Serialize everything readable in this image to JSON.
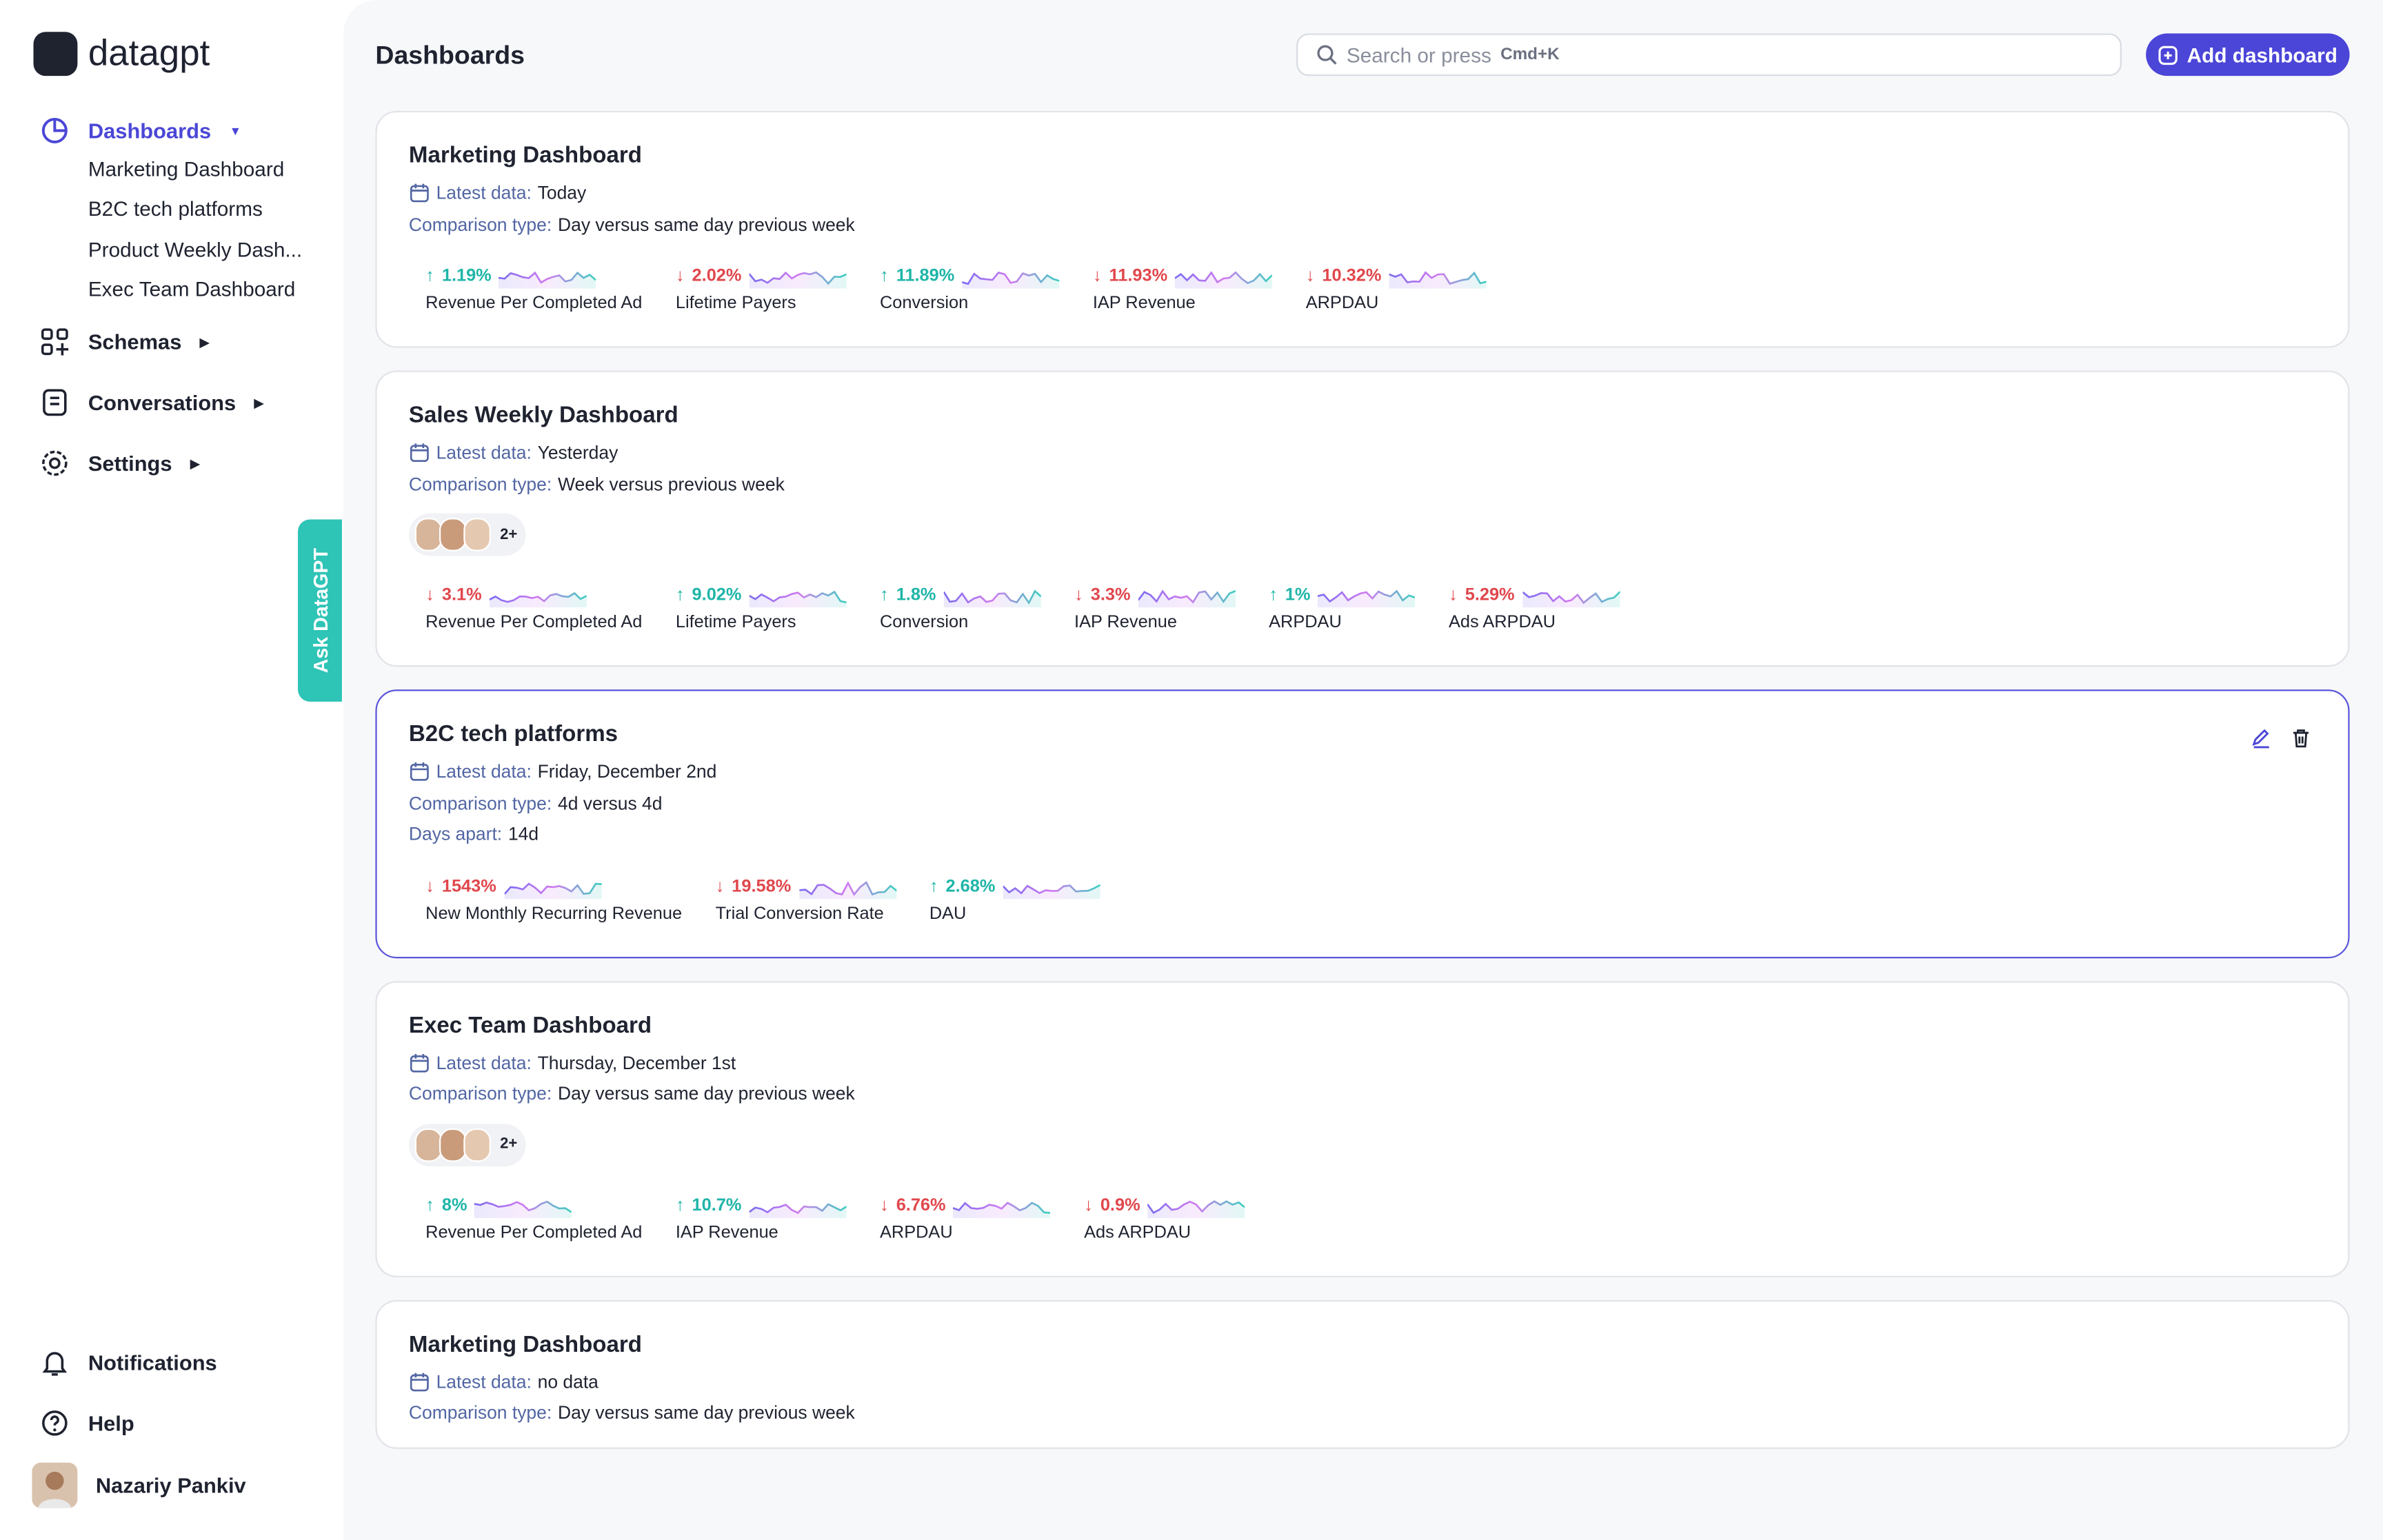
{
  "sidebar": {
    "brand": "datagpt",
    "nav": [
      {
        "label": "Dashboards",
        "children": [
          "Marketing Dashboard",
          "B2C tech platforms",
          "Product Weekly Dash...",
          "Exec Team Dashboard"
        ]
      },
      {
        "label": "Schemas"
      },
      {
        "label": "Conversations"
      },
      {
        "label": "Settings"
      }
    ],
    "bottom": [
      "Notifications",
      "Help"
    ],
    "user": "Nazariy Pankiv"
  },
  "ask_tab": "Ask DataGPT",
  "header": {
    "title": "Dashboards",
    "search_placeholder": "Search or press",
    "search_shortcut": "Cmd+K",
    "add_button": "Add dashboard"
  },
  "dashboards": [
    {
      "name": "Marketing Dashboard",
      "fields": [
        {
          "label": "Latest data:",
          "value": "Today"
        },
        {
          "label": "Comparison type:",
          "value": "Day versus same day previous week"
        }
      ],
      "metrics": [
        {
          "change": "1.19%",
          "trend": "up",
          "label": "Revenue Per Completed Ad"
        },
        {
          "change": "2.02%",
          "trend": "down",
          "label": "Lifetime Payers"
        },
        {
          "change": "11.89%",
          "trend": "up",
          "label": "Conversion"
        },
        {
          "change": "11.93%",
          "trend": "down",
          "label": "IAP Revenue"
        },
        {
          "change": "10.32%",
          "trend": "down",
          "label": "ARPDAU"
        }
      ]
    },
    {
      "name": "Sales Weekly Dashboard",
      "fields": [
        {
          "label": "Latest data:",
          "value": "Yesterday"
        },
        {
          "label": "Comparison type:",
          "value": "Week versus previous week"
        }
      ],
      "avatars": "2+",
      "metrics": [
        {
          "change": "3.1%",
          "trend": "down",
          "label": "Revenue Per Completed Ad"
        },
        {
          "change": "9.02%",
          "trend": "up",
          "label": "Lifetime Payers"
        },
        {
          "change": "1.8%",
          "trend": "up",
          "label": "Conversion"
        },
        {
          "change": "3.3%",
          "trend": "down",
          "label": "IAP Revenue"
        },
        {
          "change": "1%",
          "trend": "up",
          "label": "ARPDAU"
        },
        {
          "change": "5.29%",
          "trend": "down",
          "label": "Ads ARPDAU"
        }
      ]
    },
    {
      "name": "B2C tech platforms",
      "selected": true,
      "fields": [
        {
          "label": "Latest data:",
          "value": "Friday, December 2nd"
        },
        {
          "label": "Comparison type:",
          "value": "4d versus 4d"
        },
        {
          "label": "Days apart:",
          "value": "14d"
        }
      ],
      "metrics": [
        {
          "change": "1543%",
          "trend": "down",
          "label": "New Monthly Recurring Revenue"
        },
        {
          "change": "19.58%",
          "trend": "down",
          "label": "Trial Conversion Rate"
        },
        {
          "change": "2.68%",
          "trend": "up",
          "label": "DAU"
        }
      ]
    },
    {
      "name": "Exec Team Dashboard",
      "fields": [
        {
          "label": "Latest data:",
          "value": "Thursday, December 1st"
        },
        {
          "label": "Comparison type:",
          "value": "Day versus same day previous week"
        }
      ],
      "avatars": "2+",
      "metrics": [
        {
          "change": "8%",
          "trend": "up",
          "label": "Revenue Per Completed Ad"
        },
        {
          "change": "10.7%",
          "trend": "up",
          "label": "IAP Revenue"
        },
        {
          "change": "6.76%",
          "trend": "down",
          "label": "ARPDAU"
        },
        {
          "change": "0.9%",
          "trend": "down",
          "label": "Ads ARPDAU"
        }
      ]
    },
    {
      "name": "Marketing Dashboard",
      "fields": [
        {
          "label": "Latest data:",
          "value": "no data"
        },
        {
          "label": "Comparison type:",
          "value": "Day versus same day previous week"
        }
      ],
      "metrics": []
    }
  ]
}
